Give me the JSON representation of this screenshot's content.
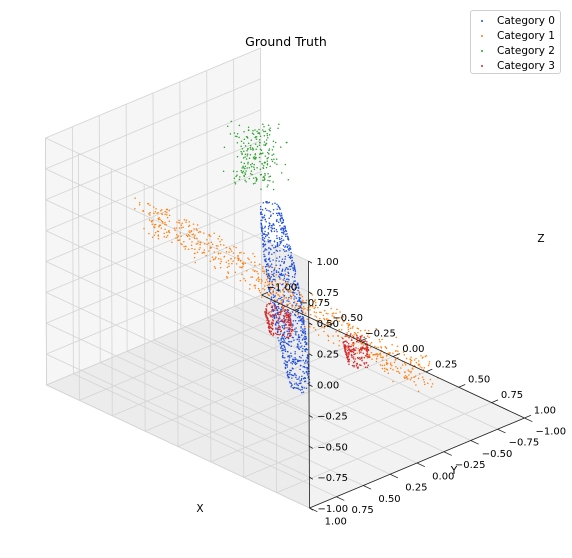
{
  "chart_data": {
    "type": "scatter",
    "title": "Ground Truth",
    "xlabel": "X",
    "ylabel": "Y",
    "zlabel": "Z",
    "xlim": [
      -1.0,
      1.0
    ],
    "ylim": [
      -1.0,
      1.0
    ],
    "zlim": [
      -1.0,
      1.0
    ],
    "x_ticks": [
      "−1.00",
      "−0.75",
      "−0.50",
      "−0.25",
      "0.00",
      "0.25",
      "0.50",
      "0.75",
      "1.00"
    ],
    "y_ticks": [
      "−1.00",
      "−0.75",
      "−0.50",
      "−0.25",
      "0.00",
      "0.25",
      "0.50",
      "0.75",
      "1.00"
    ],
    "z_ticks": [
      "−1.00",
      "−0.75",
      "−0.50",
      "−0.25",
      "0.00",
      "0.25",
      "0.50",
      "0.75",
      "1.00"
    ],
    "grid": true,
    "legend_position": "top-right",
    "series": [
      {
        "name": "Category 0",
        "color": "#1f4fe0",
        "description_values": {
          "shape": "fuselage ellipsoid along diagonal",
          "center": [
            0.0,
            0.0,
            -0.15
          ],
          "half_length": 1.0,
          "radius": 0.09
        }
      },
      {
        "name": "Category 1",
        "color": "#ff7f0e",
        "description_values": {
          "shape": "wing plane",
          "center": [
            0.05,
            0.05,
            -0.1
          ],
          "span": 0.85
        }
      },
      {
        "name": "Category 2",
        "color": "#2ca02c",
        "description_values": {
          "shape": "vertical tail fin",
          "center": [
            -0.9,
            -0.9,
            0.1
          ]
        }
      },
      {
        "name": "Category 3",
        "color": "#d62728",
        "description_values": {
          "shape": "two engine cylinders",
          "centers": [
            [
              0.3,
              0.5,
              0.0
            ],
            [
              0.3,
              -0.3,
              -0.55
            ]
          ]
        }
      }
    ]
  }
}
